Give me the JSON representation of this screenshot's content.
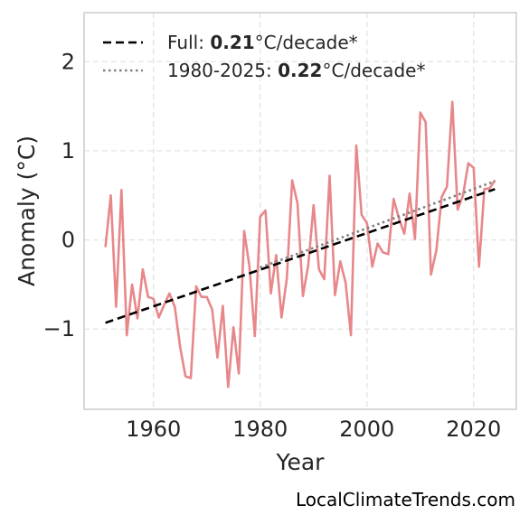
{
  "chart_data": {
    "type": "line",
    "xlabel": "Year",
    "ylabel": "Anomaly (°C)",
    "xlim": [
      1947,
      2028
    ],
    "ylim": [
      -1.9,
      2.55
    ],
    "x_ticks": [
      1960,
      1980,
      2000,
      2020
    ],
    "y_ticks": [
      -1,
      0,
      1,
      2
    ],
    "y_tick_labels": [
      "−1",
      "0",
      "1",
      "2"
    ],
    "grid": true,
    "legend_position": "top-left",
    "series": [
      {
        "color": "#e8878a",
        "style": "solid",
        "x": [
          1951,
          1952,
          1953,
          1954,
          1955,
          1956,
          1957,
          1958,
          1959,
          1960,
          1961,
          1962,
          1963,
          1964,
          1965,
          1966,
          1967,
          1968,
          1969,
          1970,
          1971,
          1972,
          1973,
          1974,
          1975,
          1976,
          1977,
          1978,
          1979,
          1980,
          1981,
          1982,
          1983,
          1984,
          1985,
          1986,
          1987,
          1988,
          1989,
          1990,
          1991,
          1992,
          1993,
          1994,
          1995,
          1996,
          1997,
          1998,
          1999,
          2000,
          2001,
          2002,
          2003,
          2004,
          2005,
          2006,
          2007,
          2008,
          2009,
          2010,
          2011,
          2012,
          2013,
          2014,
          2015,
          2016,
          2017,
          2018,
          2019,
          2020,
          2021,
          2022,
          2023,
          2024
        ],
        "y": [
          -0.08,
          0.5,
          -0.75,
          0.56,
          -1.07,
          -0.5,
          -0.88,
          -0.33,
          -0.64,
          -0.66,
          -0.87,
          -0.73,
          -0.6,
          -0.75,
          -1.2,
          -1.53,
          -1.55,
          -0.52,
          -0.64,
          -0.64,
          -0.78,
          -1.32,
          -0.74,
          -1.65,
          -0.98,
          -1.5,
          0.1,
          -0.3,
          -1.08,
          0.26,
          0.33,
          -0.6,
          -0.17,
          -0.87,
          -0.43,
          0.67,
          0.41,
          -0.63,
          -0.28,
          0.39,
          -0.33,
          -0.44,
          0.72,
          -0.62,
          -0.24,
          -0.48,
          -1.07,
          1.06,
          0.28,
          0.19,
          -0.3,
          -0.04,
          -0.14,
          -0.16,
          0.46,
          0.24,
          0.07,
          0.52,
          0.01,
          1.43,
          1.32,
          -0.39,
          -0.12,
          0.48,
          0.6,
          1.55,
          0.34,
          0.5,
          0.86,
          0.81,
          -0.3,
          0.57,
          0.58,
          0.67
        ]
      },
      {
        "name": "Full",
        "rate": "0.21",
        "unit": "°C/decade*",
        "color": "#000000",
        "style": "dashed",
        "x": [
          1951,
          2024
        ],
        "y": [
          -0.93,
          0.57
        ]
      },
      {
        "name": "1980-2025",
        "rate": "0.22",
        "unit": "°C/decade*",
        "color": "#808080",
        "style": "dotted",
        "x": [
          1980,
          2024
        ],
        "y": [
          -0.31,
          0.66
        ]
      }
    ],
    "credit": "LocalClimateTrends.com"
  }
}
